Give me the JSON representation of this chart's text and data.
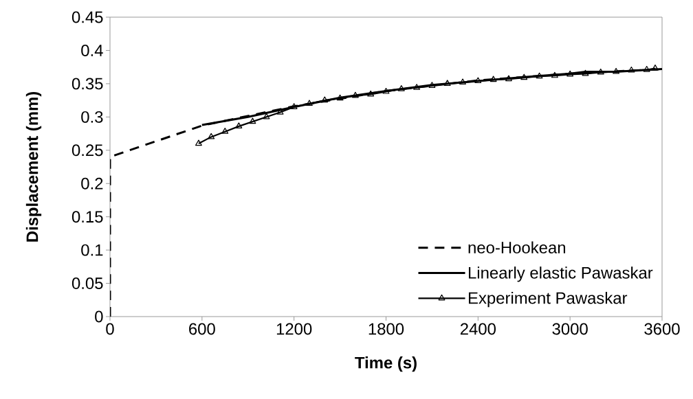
{
  "chart_data": {
    "type": "line",
    "xlabel": "Time (s)",
    "ylabel": "Displacement (mm)",
    "xlim": [
      0,
      3600
    ],
    "xticks": [
      0,
      600,
      1200,
      1800,
      2400,
      3000,
      3600
    ],
    "ylim": [
      0,
      0.45
    ],
    "yticks": [
      0,
      0.05,
      0.1,
      0.15,
      0.2,
      0.25,
      0.3,
      0.35,
      0.4,
      0.45
    ],
    "grid": false,
    "legend": "bottom right",
    "series": [
      {
        "name": "neo-Hookean",
        "color": "#000000",
        "line_style": "dashed",
        "marker": "none",
        "x": [
          0,
          0,
          600,
          1200,
          1800,
          2400,
          3000,
          3600
        ],
        "values": [
          0,
          0.24,
          0.287,
          0.316,
          0.339,
          0.355,
          0.365,
          0.372
        ]
      },
      {
        "name": "Linearly elastic Pawaskar",
        "color": "#000000",
        "line_style": "solid",
        "marker": "none",
        "x": [
          600,
          900,
          1200,
          1500,
          1800,
          2100,
          2400,
          2700,
          3000,
          3100,
          3300,
          3600
        ],
        "values": [
          0.288,
          0.3,
          0.315,
          0.329,
          0.339,
          0.348,
          0.354,
          0.36,
          0.365,
          0.368,
          0.368,
          0.372
        ]
      },
      {
        "name": "Experiment Pawaskar",
        "color": "#000000",
        "line_style": "solid",
        "marker": "triangle",
        "x": [
          578,
          660,
          750,
          840,
          930,
          1020,
          1110,
          1200,
          1300,
          1400,
          1500,
          1600,
          1700,
          1800,
          1900,
          2000,
          2100,
          2200,
          2300,
          2400,
          2500,
          2600,
          2700,
          2800,
          2900,
          3000,
          3100,
          3200,
          3300,
          3400,
          3500,
          3555
        ],
        "values": [
          0.26,
          0.27,
          0.278,
          0.286,
          0.293,
          0.3,
          0.307,
          0.315,
          0.32,
          0.325,
          0.328,
          0.332,
          0.334,
          0.338,
          0.342,
          0.344,
          0.347,
          0.35,
          0.352,
          0.354,
          0.356,
          0.357,
          0.359,
          0.361,
          0.362,
          0.364,
          0.365,
          0.367,
          0.368,
          0.37,
          0.371,
          0.373
        ]
      }
    ]
  }
}
